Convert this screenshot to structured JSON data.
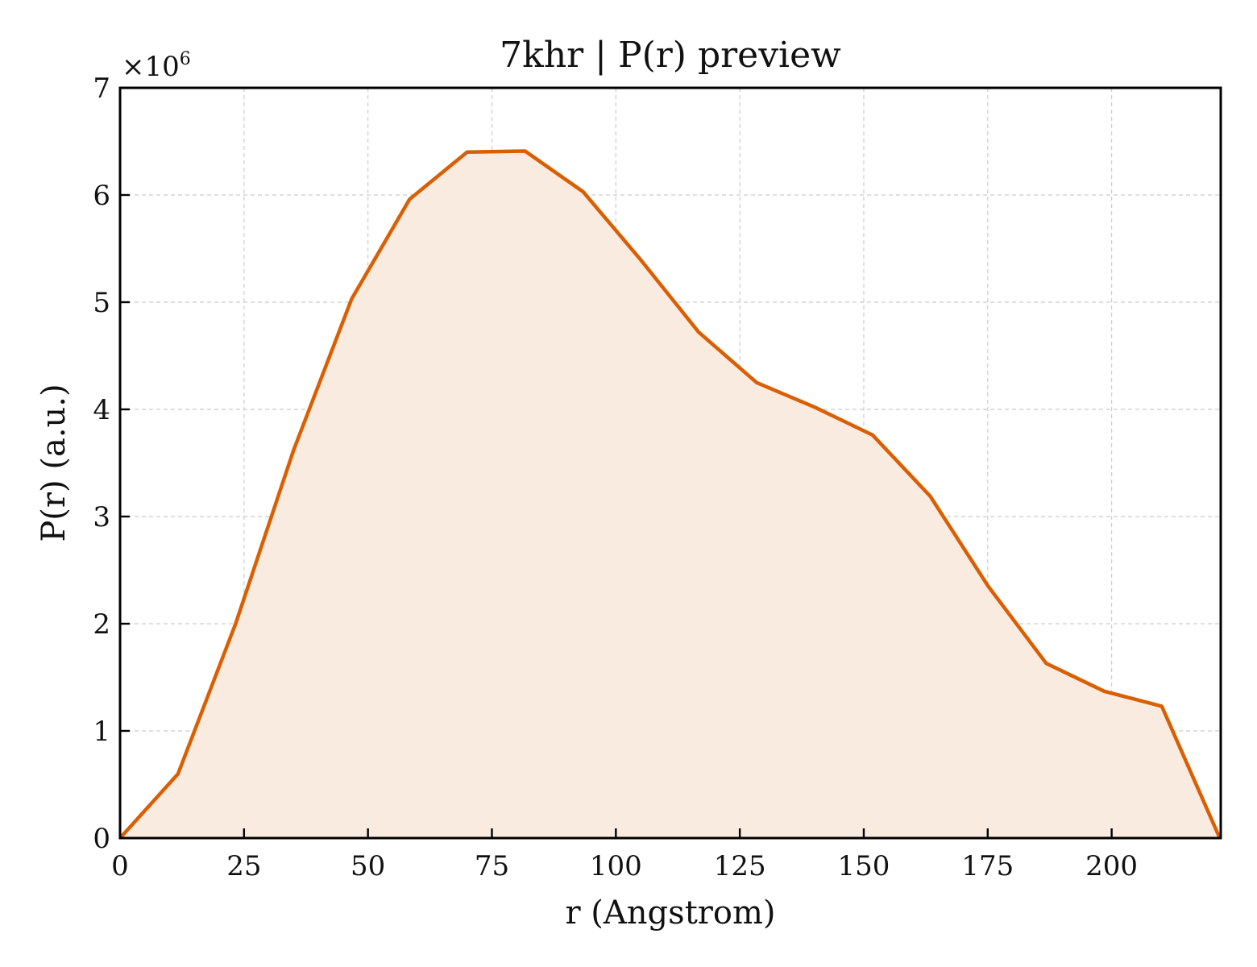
{
  "chart_data": {
    "type": "area",
    "title": "7khr | P(r) preview",
    "xlabel": "r (Angstrom)",
    "ylabel": "P(r) (a.u.)",
    "y_multiplier_base": "×10",
    "y_multiplier_exp": "6",
    "xlim": [
      0,
      222
    ],
    "ylim": [
      0,
      7000000
    ],
    "grid": true,
    "x_ticks": [
      0,
      25,
      50,
      75,
      100,
      125,
      150,
      175,
      200
    ],
    "x_tick_labels": [
      "0",
      "25",
      "50",
      "75",
      "100",
      "125",
      "150",
      "175",
      "200"
    ],
    "y_ticks": [
      0,
      1000000,
      2000000,
      3000000,
      4000000,
      5000000,
      6000000,
      7000000
    ],
    "y_tick_labels": [
      "0",
      "1",
      "2",
      "3",
      "4",
      "5",
      "6",
      "7"
    ],
    "colors": {
      "line": "#d95f02",
      "fill": "#f9ebe0"
    },
    "series": [
      {
        "x": [
          0,
          11.7,
          23.3,
          35.0,
          46.7,
          58.4,
          70.0,
          81.7,
          93.4,
          105.1,
          116.7,
          128.4,
          140.1,
          151.8,
          163.4,
          175.1,
          186.8,
          198.5,
          210.1,
          221.8
        ],
        "y": [
          0,
          600000,
          2000000,
          3620000,
          5030000,
          5960000,
          6400000,
          6410000,
          6030000,
          5390000,
          4720000,
          4250000,
          4020000,
          3760000,
          3190000,
          2350000,
          1630000,
          1370000,
          1230000,
          0
        ]
      }
    ]
  }
}
